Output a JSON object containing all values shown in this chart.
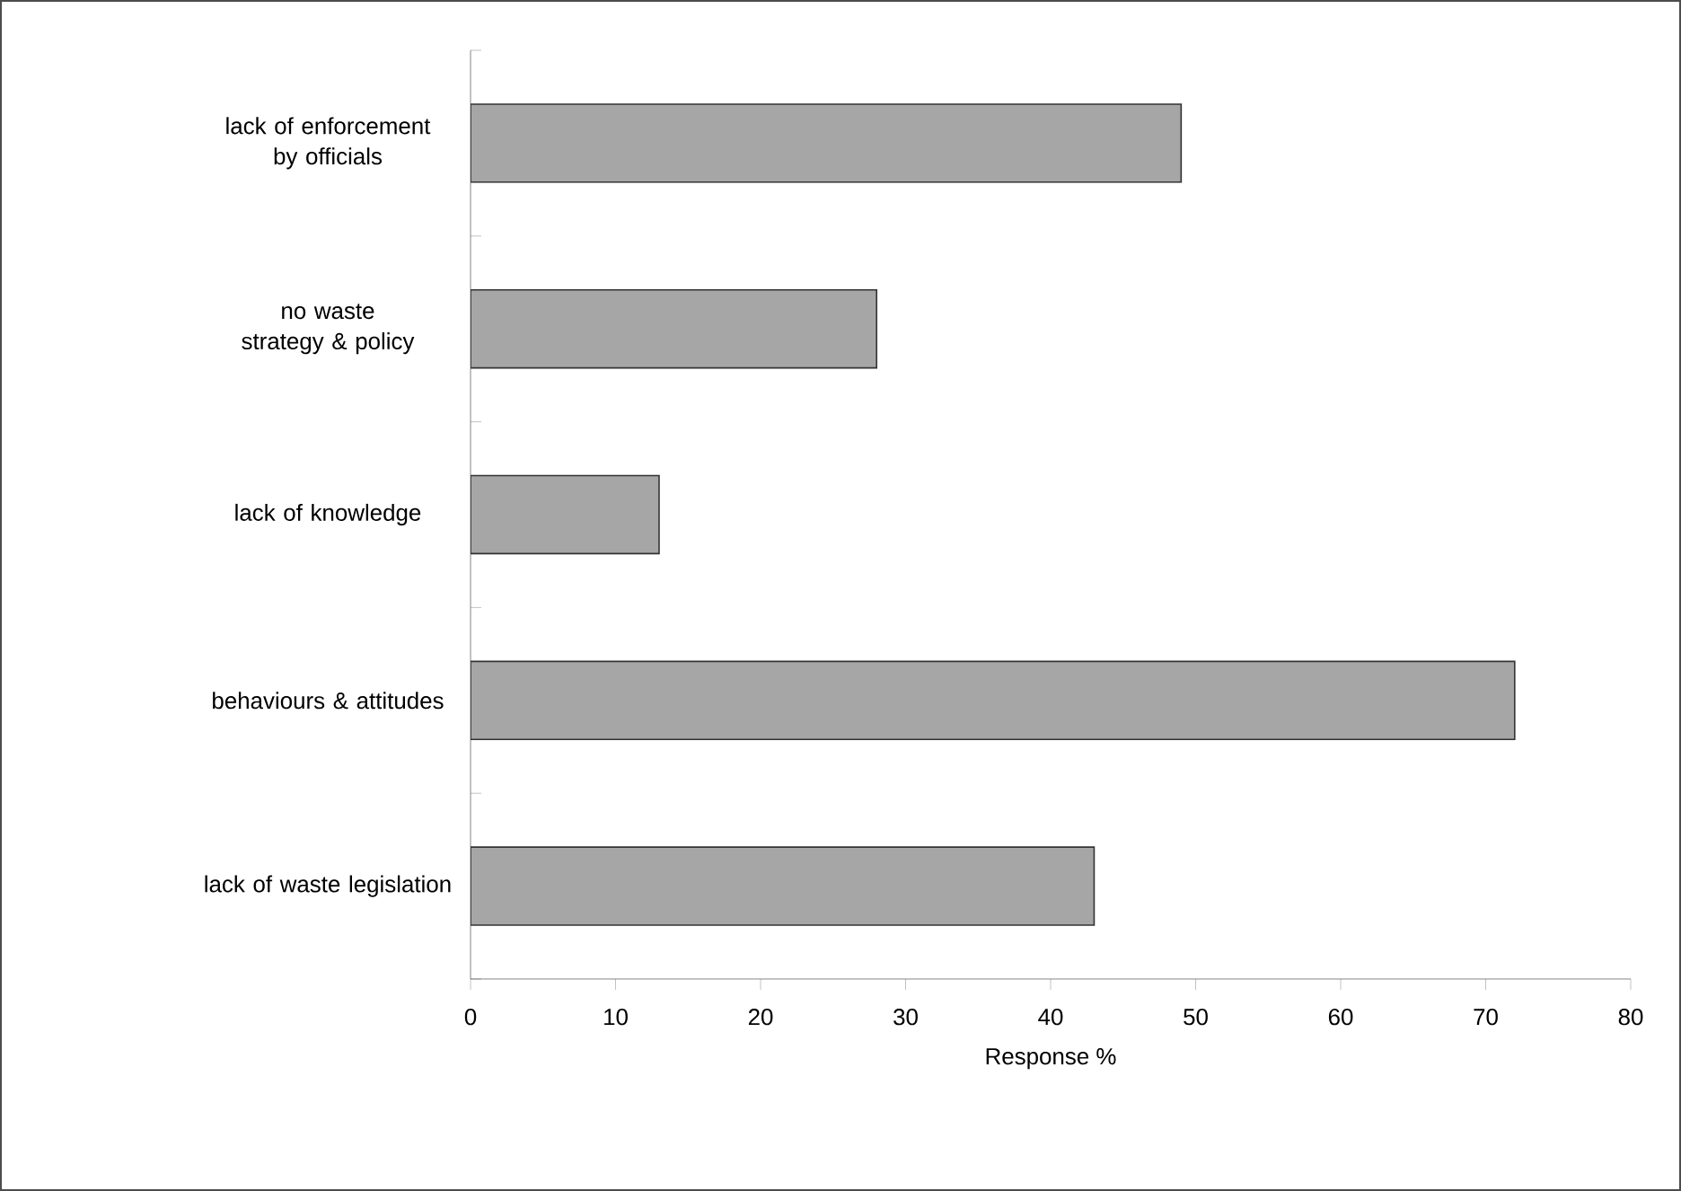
{
  "chart_data": {
    "type": "bar",
    "orientation": "horizontal",
    "categories": [
      "lack of enforcement by officials",
      "no waste strategy & policy",
      "lack of knowledge",
      "behaviours & attitudes",
      "lack of waste legislation"
    ],
    "values": [
      49,
      28,
      13,
      72,
      43
    ],
    "color": "#a6a6a6",
    "xlim": [
      0,
      80
    ],
    "xticks": [
      0,
      10,
      20,
      30,
      40,
      50,
      60,
      70,
      80
    ],
    "xlabel": "Response %"
  }
}
